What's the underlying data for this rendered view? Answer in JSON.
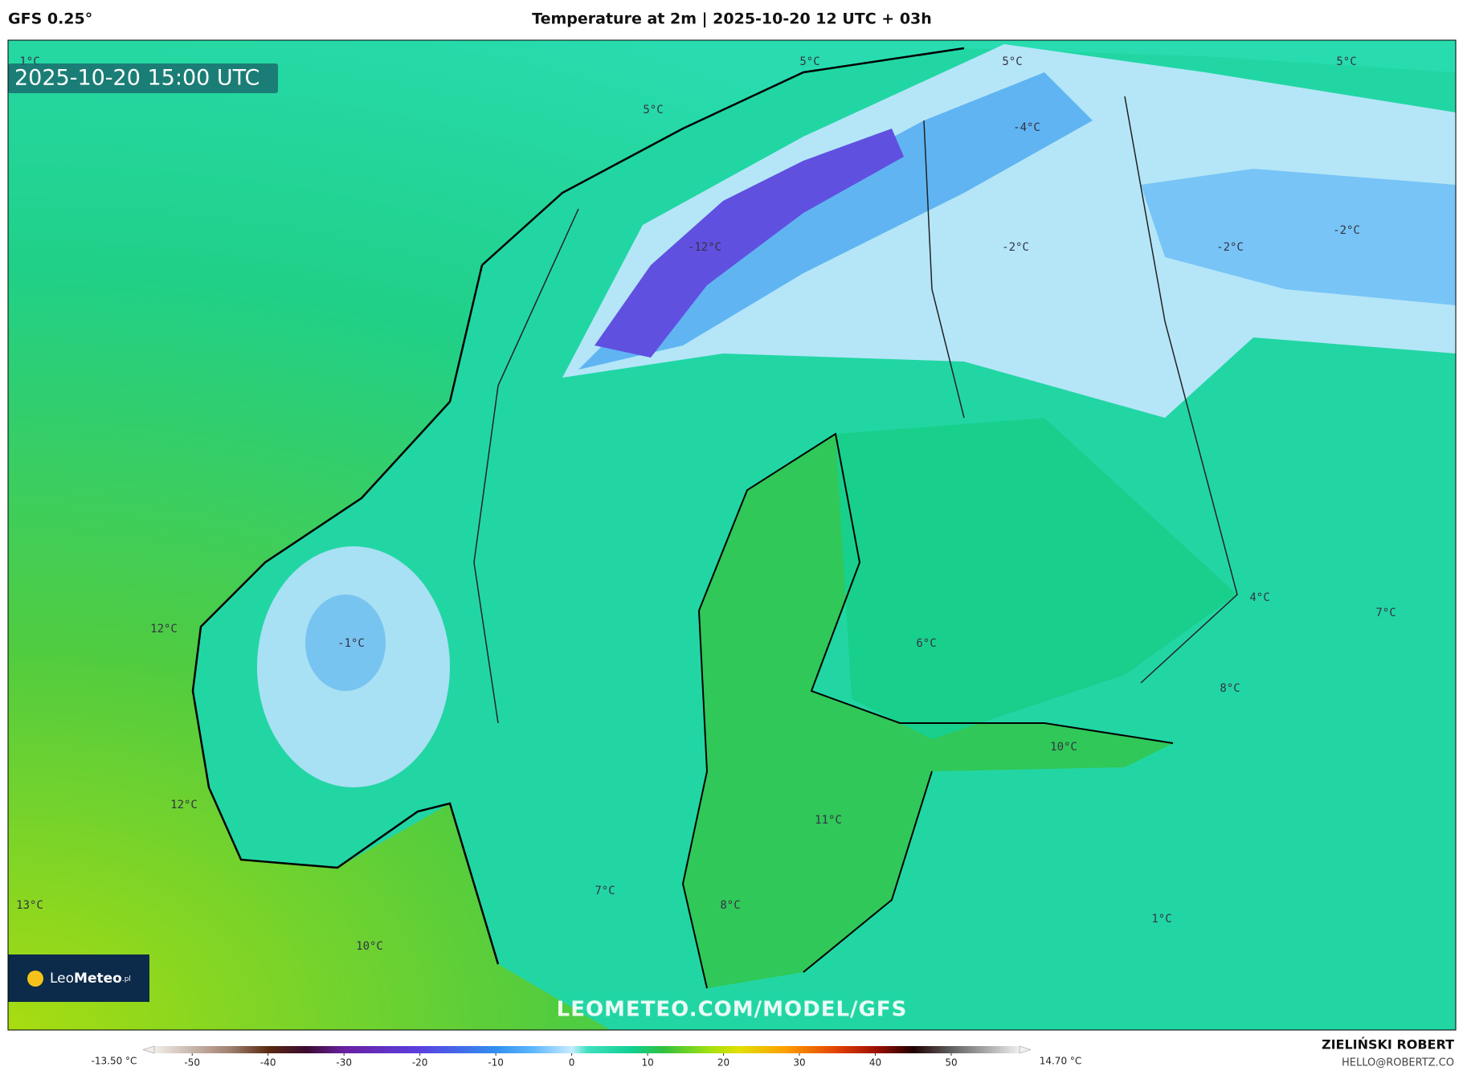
{
  "header": {
    "model": "GFS 0.25°",
    "title": "Temperature at 2m | 2025-10-20 12 UTC + 03h"
  },
  "valid_time": "2025-10-20 15:00 UTC",
  "map_labels": [
    "1°C",
    "5°C",
    "5°C",
    "5°C",
    "5°C",
    "-4°C",
    "-12°C",
    "-2°C",
    "-2°C",
    "-2°C",
    "12°C",
    "-1°C",
    "6°C",
    "4°C",
    "7°C",
    "8°C",
    "10°C",
    "12°C",
    "11°C",
    "13°C",
    "7°C",
    "8°C",
    "10°C",
    "1°C"
  ],
  "watermark": "LEOMETEO.COM/MODEL/GFS",
  "logo": {
    "name": "Leo",
    "bold": "Meteo",
    "suffix": ".pl"
  },
  "colorbar": {
    "min_label": "-13.50 °C",
    "max_label": "14.70 °C",
    "lim": [
      -55,
      59
    ],
    "ticks": [
      -50,
      -40,
      -30,
      -20,
      -10,
      0,
      10,
      20,
      30,
      40,
      50
    ],
    "stops": [
      {
        "value": -55,
        "color": "#f0ede8"
      },
      {
        "value": -45,
        "color": "#a08070"
      },
      {
        "value": -40,
        "color": "#5a2a10"
      },
      {
        "value": -35,
        "color": "#3a0a30"
      },
      {
        "value": -30,
        "color": "#6a20a0"
      },
      {
        "value": -20,
        "color": "#5a40e0"
      },
      {
        "value": -10,
        "color": "#3090f0"
      },
      {
        "value": -5,
        "color": "#60b8ff"
      },
      {
        "value": 0,
        "color": "#c8ecff"
      },
      {
        "value": 2,
        "color": "#40e0c0"
      },
      {
        "value": 8,
        "color": "#10d090"
      },
      {
        "value": 12,
        "color": "#30c040"
      },
      {
        "value": 18,
        "color": "#a0e010"
      },
      {
        "value": 22,
        "color": "#e0e000"
      },
      {
        "value": 28,
        "color": "#ffa000"
      },
      {
        "value": 35,
        "color": "#e04000"
      },
      {
        "value": 40,
        "color": "#a01000"
      },
      {
        "value": 45,
        "color": "#200000"
      },
      {
        "value": 50,
        "color": "#606060"
      },
      {
        "value": 59,
        "color": "#f0f0f0"
      }
    ]
  },
  "credit": {
    "author": "ZIELIŃSKI ROBERT",
    "email": "HELLO@ROBERTZ.CO"
  }
}
